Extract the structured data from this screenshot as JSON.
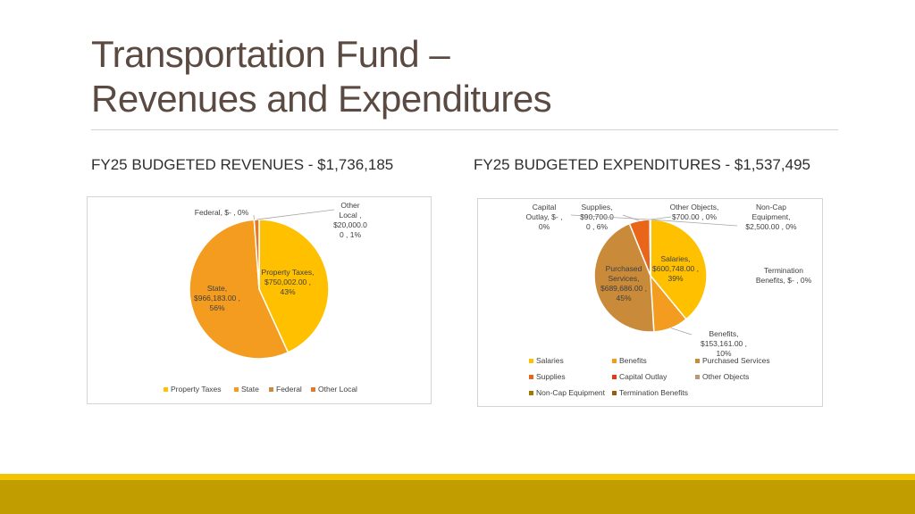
{
  "title": {
    "line1": "Transportation Fund –",
    "line2": "Revenues and Expenditures"
  },
  "revenues_heading": "FY25 BUDGETED REVENUES - $1,736,185",
  "expenditures_heading": "FY25 BUDGETED EXPENDITURES - $1,537,495",
  "colors": {
    "title": "#5b4a42",
    "footer_thin": "#f2c400",
    "footer_band": "#c29d00"
  },
  "chart_data": [
    {
      "type": "pie",
      "title": "",
      "legend_position": "bottom",
      "slices": [
        {
          "name": "Property Taxes",
          "value": 750002.0,
          "percent": 43,
          "color": "#ffc000",
          "label_lines": [
            "Property Taxes,",
            "$750,002.00 ,",
            "43%"
          ]
        },
        {
          "name": "State",
          "value": 966183.0,
          "percent": 56,
          "color": "#f39c1f",
          "label_lines": [
            "State,",
            "$966,183.00 ,",
            "56%"
          ]
        },
        {
          "name": "Federal",
          "value": 0,
          "percent": 0,
          "color": "#cc8a3e",
          "label_lines": [
            "Federal, $-   , 0%"
          ]
        },
        {
          "name": "Other Local",
          "value": 20000.0,
          "percent": 1,
          "color": "#e87722",
          "label_lines": [
            "Other",
            "Local ,",
            "$20,000.0",
            "0 , 1%"
          ]
        }
      ]
    },
    {
      "type": "pie",
      "title": "",
      "legend_position": "bottom",
      "slices": [
        {
          "name": "Salaries",
          "value": 600748.0,
          "percent": 39,
          "color": "#ffc000",
          "label_lines": [
            "Salaries,",
            "$600,748.00 ,",
            "39%"
          ]
        },
        {
          "name": "Benefits",
          "value": 153161.0,
          "percent": 10,
          "color": "#f39c1f",
          "label_lines": [
            "Benefits,",
            "$153,161.00 ,",
            "10%"
          ]
        },
        {
          "name": "Purchased Services",
          "value": 689686.0,
          "percent": 45,
          "color": "#c98a3a",
          "label_lines": [
            "Purchased",
            "Services,",
            "$689,686.00 ,",
            "45%"
          ]
        },
        {
          "name": "Supplies",
          "value": 90700.0,
          "percent": 6,
          "color": "#e8651a",
          "label_lines": [
            "Supplies,",
            "$90,700.0",
            "0 , 6%"
          ]
        },
        {
          "name": "Capital Outlay",
          "value": 0,
          "percent": 0,
          "color": "#e03c14",
          "label_lines": [
            "Capital",
            "Outlay, $-  ,",
            "0%"
          ]
        },
        {
          "name": "Other Objects",
          "value": 700.0,
          "percent": 0,
          "color": "#b89a78",
          "label_lines": [
            "Other Objects,",
            "$700.00 , 0%"
          ]
        },
        {
          "name": "Non-Cap Equipment",
          "value": 2500.0,
          "percent": 0,
          "color": "#a07800",
          "label_lines": [
            "Non-Cap",
            "Equipment,",
            "$2,500.00 , 0%"
          ]
        },
        {
          "name": "Termination Benefits",
          "value": 0,
          "percent": 0,
          "color": "#9a5a10",
          "label_lines": [
            "Termination",
            "Benefits, $-   , 0%"
          ]
        }
      ]
    }
  ]
}
